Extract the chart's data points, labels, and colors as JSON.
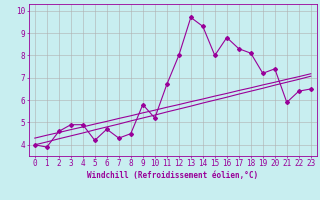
{
  "title": "",
  "xlabel": "Windchill (Refroidissement éolien,°C)",
  "ylabel": "",
  "bg_color": "#c8eef0",
  "line_color": "#990099",
  "grid_color": "#b0b0b0",
  "x_data": [
    0,
    1,
    2,
    3,
    4,
    5,
    6,
    7,
    8,
    9,
    10,
    11,
    12,
    13,
    14,
    15,
    16,
    17,
    18,
    19,
    20,
    21,
    22,
    23
  ],
  "y_main": [
    4.0,
    3.9,
    4.6,
    4.9,
    4.9,
    4.2,
    4.7,
    4.3,
    4.5,
    5.8,
    5.2,
    6.7,
    8.0,
    9.7,
    9.3,
    8.0,
    8.8,
    8.3,
    8.1,
    7.2,
    7.4,
    5.9,
    6.4,
    6.5
  ],
  "y_trend1": [
    4.0,
    4.13,
    4.27,
    4.4,
    4.53,
    4.67,
    4.8,
    4.93,
    5.07,
    5.2,
    5.33,
    5.47,
    5.6,
    5.73,
    5.87,
    6.0,
    6.13,
    6.27,
    6.4,
    6.53,
    6.67,
    6.8,
    6.93,
    7.07
  ],
  "y_trend2": [
    4.3,
    4.43,
    4.55,
    4.68,
    4.8,
    4.93,
    5.05,
    5.18,
    5.3,
    5.43,
    5.55,
    5.68,
    5.8,
    5.93,
    6.05,
    6.18,
    6.3,
    6.43,
    6.55,
    6.68,
    6.8,
    6.93,
    7.05,
    7.18
  ],
  "xlim": [
    -0.5,
    23.5
  ],
  "ylim": [
    3.5,
    10.3
  ],
  "xticks": [
    0,
    1,
    2,
    3,
    4,
    5,
    6,
    7,
    8,
    9,
    10,
    11,
    12,
    13,
    14,
    15,
    16,
    17,
    18,
    19,
    20,
    21,
    22,
    23
  ],
  "yticks": [
    4,
    5,
    6,
    7,
    8,
    9,
    10
  ],
  "marker": "D",
  "marker_size": 2.0,
  "line_width": 0.8,
  "xlabel_fontsize": 5.5,
  "tick_fontsize": 5.5
}
